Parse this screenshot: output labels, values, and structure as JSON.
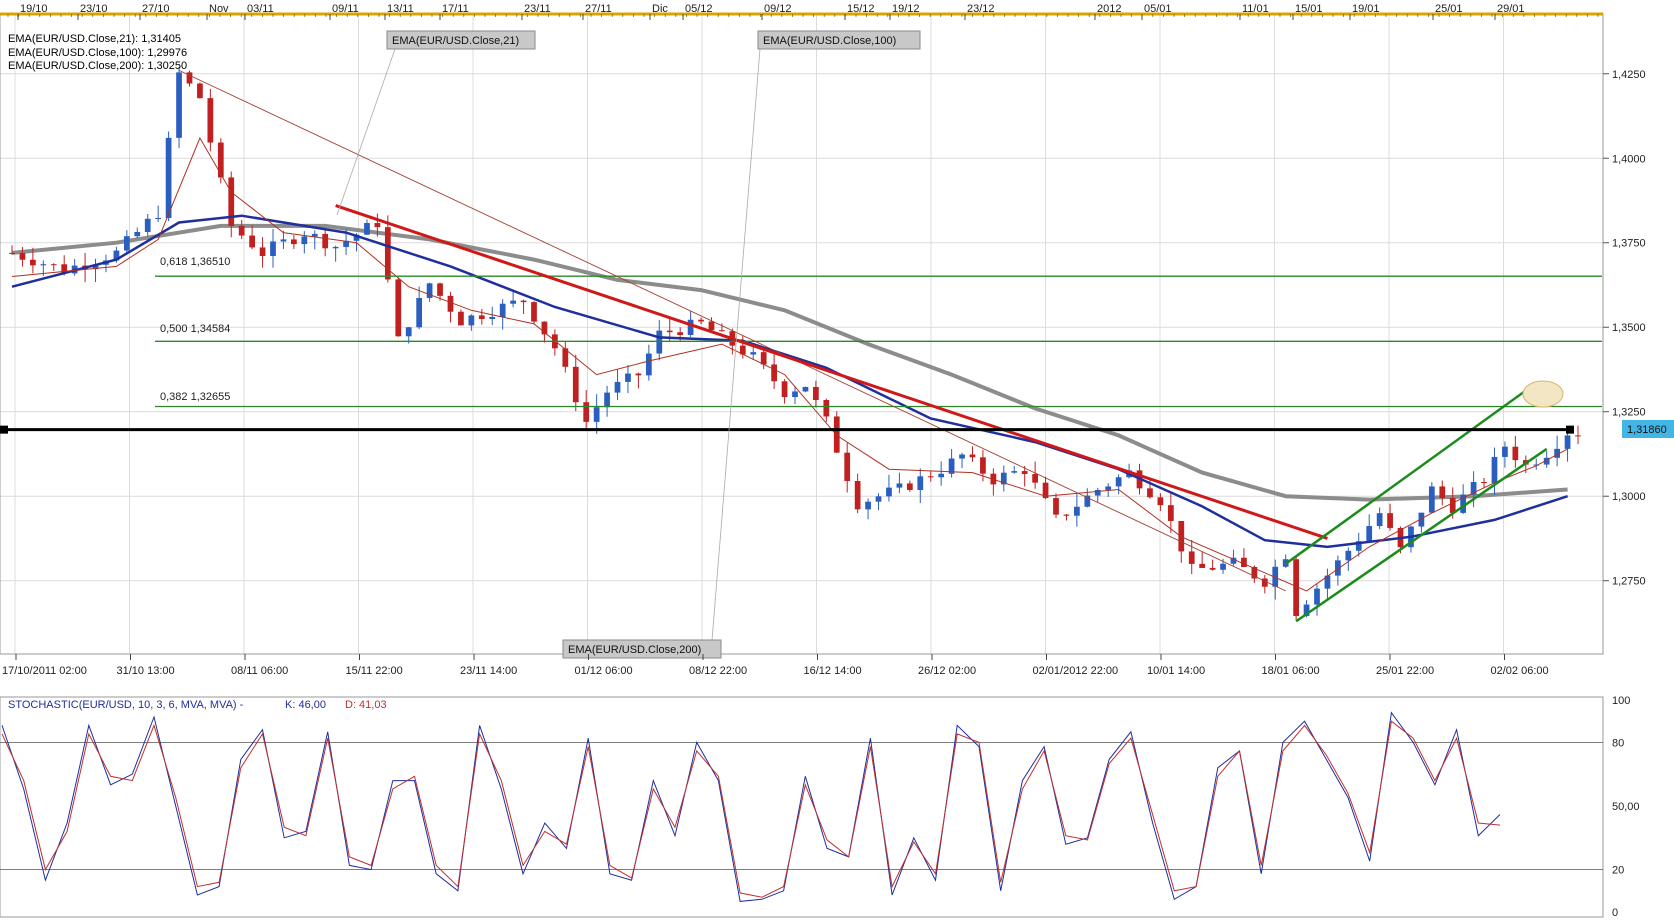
{
  "colors": {
    "ema21": "#b03020",
    "ema100": "#1f2f9e",
    "ema200": "#8c8c8c",
    "up": "#2a5fc0",
    "down": "#c02020",
    "trend_red": "#d01818",
    "channel": "#1a8c1a",
    "fib": "#2a8a2a",
    "support": "#000000",
    "price_tag": "#41b6e6",
    "stoch_k": "#1f2f9e",
    "stoch_d": "#c03030",
    "grid": "#dcdcdc"
  },
  "top_axis": {
    "labels": [
      "19/10",
      "23/10",
      "27/10",
      "Nov",
      "03/11",
      "09/11",
      "13/11",
      "17/11",
      "23/11",
      "27/11",
      "Dic",
      "05/12",
      "09/12",
      "15/12",
      "19/12",
      "23/12",
      "2012",
      "05/01",
      "11/01",
      "15/01",
      "19/01",
      "25/01",
      "29/01"
    ]
  },
  "bottom_axis": {
    "labels": [
      "17/10/2011 02:00",
      "31/10 13:00",
      "08/11 06:00",
      "15/11 22:00",
      "23/11 14:00",
      "01/12 06:00",
      "08/12 22:00",
      "16/12 14:00",
      "26/12 02:00",
      "02/01/2012 22:00",
      "10/01 14:00",
      "18/01 06:00",
      "25/01 22:00",
      "02/02 06:00"
    ]
  },
  "legend": [
    {
      "text": "EMA(EUR/USD.Close,21): 1,31405",
      "color_key": "ema21"
    },
    {
      "text": "EMA(EUR/USD.Close,100): 1,29976",
      "color_key": "ema100"
    },
    {
      "text": "EMA(EUR/USD.Close,200): 1,30250",
      "color_key": "ema200"
    }
  ],
  "indicator_labels": [
    "EMA(EUR/USD.Close,21)",
    "EMA(EUR/USD.Close,100)",
    "EMA(EUR/USD.Close,200)"
  ],
  "fib_labels": [
    "0,618 1,36510",
    "0,500 1,34584",
    "0,382 1,32655"
  ],
  "price_tag": "1,31860",
  "stochastic": {
    "title": "STOCHASTIC(EUR/USD, 10, 3, 6, MVA, MVA) -",
    "k_text": "K: 46,00",
    "d_text": "D: 41,03",
    "ticks": [
      "100",
      "80",
      "50,00",
      "20",
      "0"
    ]
  },
  "chart_data": [
    {
      "type": "candlestick",
      "title": "",
      "y_ticks": [
        "1,4250",
        "1,4000",
        "1,3750",
        "1,3500",
        "1,3250",
        "1,3000",
        "1,2750"
      ],
      "ylim": [
        1.2545,
        1.4415
      ],
      "x_range_index": [
        0,
        150
      ],
      "grid": true,
      "anchors_close": [
        [
          0,
          1.372
        ],
        [
          5,
          1.367
        ],
        [
          10,
          1.372
        ],
        [
          14,
          1.384
        ],
        [
          16,
          1.425
        ],
        [
          18,
          1.418
        ],
        [
          19,
          1.405
        ],
        [
          21,
          1.38
        ],
        [
          24,
          1.372
        ],
        [
          28,
          1.378
        ],
        [
          31,
          1.374
        ],
        [
          35,
          1.381
        ],
        [
          37,
          1.346
        ],
        [
          40,
          1.363
        ],
        [
          43,
          1.352
        ],
        [
          46,
          1.355
        ],
        [
          49,
          1.358
        ],
        [
          52,
          1.344
        ],
        [
          55,
          1.322
        ],
        [
          57,
          1.331
        ],
        [
          60,
          1.336
        ],
        [
          62,
          1.348
        ],
        [
          66,
          1.351
        ],
        [
          71,
          1.341
        ],
        [
          74,
          1.331
        ],
        [
          76,
          1.333
        ],
        [
          78,
          1.322
        ],
        [
          81,
          1.298
        ],
        [
          85,
          1.302
        ],
        [
          89,
          1.308
        ],
        [
          91,
          1.312
        ],
        [
          94,
          1.305
        ],
        [
          97,
          1.308
        ],
        [
          100,
          1.293
        ],
        [
          104,
          1.302
        ],
        [
          107,
          1.307
        ],
        [
          110,
          1.299
        ],
        [
          113,
          1.278
        ],
        [
          117,
          1.28
        ],
        [
          120,
          1.275
        ],
        [
          122,
          1.283
        ],
        [
          123,
          1.266
        ],
        [
          125,
          1.273
        ],
        [
          128,
          1.284
        ],
        [
          131,
          1.295
        ],
        [
          133,
          1.284
        ],
        [
          136,
          1.302
        ],
        [
          138,
          1.297
        ],
        [
          141,
          1.305
        ],
        [
          143,
          1.315
        ],
        [
          145,
          1.309
        ],
        [
          147,
          1.313
        ],
        [
          149,
          1.319
        ]
      ],
      "ema21": [
        [
          0,
          1.365
        ],
        [
          10,
          1.368
        ],
        [
          14,
          1.376
        ],
        [
          18,
          1.406
        ],
        [
          21,
          1.39
        ],
        [
          26,
          1.378
        ],
        [
          33,
          1.375
        ],
        [
          38,
          1.362
        ],
        [
          44,
          1.355
        ],
        [
          50,
          1.351
        ],
        [
          56,
          1.336
        ],
        [
          61,
          1.34
        ],
        [
          68,
          1.345
        ],
        [
          74,
          1.336
        ],
        [
          79,
          1.318
        ],
        [
          84,
          1.308
        ],
        [
          92,
          1.307
        ],
        [
          99,
          1.3
        ],
        [
          106,
          1.302
        ],
        [
          112,
          1.288
        ],
        [
          118,
          1.28
        ],
        [
          124,
          1.272
        ],
        [
          130,
          1.285
        ],
        [
          136,
          1.295
        ],
        [
          142,
          1.304
        ],
        [
          146,
          1.309
        ],
        [
          149,
          1.314
        ]
      ],
      "ema100": [
        [
          0,
          1.362
        ],
        [
          10,
          1.37
        ],
        [
          16,
          1.381
        ],
        [
          22,
          1.383
        ],
        [
          32,
          1.378
        ],
        [
          42,
          1.368
        ],
        [
          52,
          1.356
        ],
        [
          62,
          1.347
        ],
        [
          70,
          1.346
        ],
        [
          78,
          1.338
        ],
        [
          88,
          1.323
        ],
        [
          98,
          1.316
        ],
        [
          106,
          1.308
        ],
        [
          114,
          1.297
        ],
        [
          120,
          1.287
        ],
        [
          126,
          1.285
        ],
        [
          134,
          1.288
        ],
        [
          142,
          1.293
        ],
        [
          149,
          1.3
        ]
      ],
      "ema200": [
        [
          0,
          1.372
        ],
        [
          10,
          1.375
        ],
        [
          20,
          1.38
        ],
        [
          30,
          1.38
        ],
        [
          40,
          1.376
        ],
        [
          50,
          1.37
        ],
        [
          58,
          1.364
        ],
        [
          66,
          1.361
        ],
        [
          74,
          1.355
        ],
        [
          82,
          1.345
        ],
        [
          90,
          1.336
        ],
        [
          98,
          1.326
        ],
        [
          106,
          1.318
        ],
        [
          114,
          1.307
        ],
        [
          122,
          1.3
        ],
        [
          130,
          1.299
        ],
        [
          140,
          1.3
        ],
        [
          149,
          1.302
        ]
      ],
      "lines": {
        "fib_levels": [
          1.3651,
          1.34584,
          1.32655
        ],
        "support": 1.3197,
        "red_trend": [
          [
            31,
            1.386
          ],
          [
            126,
            1.2875
          ]
        ],
        "thin_trend": [
          [
            16,
            1.426
          ],
          [
            122,
            1.272
          ]
        ],
        "channel_upper": [
          [
            122,
            1.28
          ],
          [
            146,
            1.3335
          ]
        ],
        "channel_lower": [
          [
            123,
            1.263
          ],
          [
            147,
            1.314
          ]
        ]
      },
      "last_price": 1.3186
    },
    {
      "type": "line",
      "title": "STOCHASTIC(EUR/USD, 10, 3, 6, MVA, MVA)",
      "ylim": [
        0,
        100
      ],
      "y_ticks": [
        100,
        80,
        50,
        20,
        0
      ],
      "series": [
        {
          "name": "K",
          "values": [
            88,
            58,
            15,
            42,
            88,
            60,
            65,
            92,
            50,
            8,
            12,
            72,
            86,
            35,
            38,
            85,
            22,
            20,
            62,
            62,
            18,
            10,
            88,
            58,
            18,
            42,
            30,
            82,
            18,
            15,
            62,
            36,
            80,
            62,
            5,
            6,
            10,
            64,
            30,
            26,
            82,
            8,
            35,
            15,
            88,
            78,
            10,
            62,
            78,
            32,
            35,
            72,
            85,
            42,
            6,
            12,
            68,
            76,
            18,
            80,
            90,
            72,
            54,
            24,
            94,
            80,
            60,
            86,
            36,
            46
          ]
        },
        {
          "name": "D",
          "values": [
            84,
            62,
            20,
            38,
            84,
            64,
            62,
            88,
            54,
            12,
            14,
            68,
            84,
            40,
            36,
            82,
            26,
            22,
            58,
            64,
            22,
            12,
            84,
            62,
            22,
            38,
            32,
            78,
            22,
            16,
            58,
            40,
            76,
            64,
            9,
            7,
            12,
            60,
            34,
            26,
            78,
            12,
            33,
            18,
            84,
            80,
            14,
            58,
            76,
            36,
            34,
            70,
            82,
            46,
            10,
            12,
            64,
            76,
            22,
            76,
            88,
            74,
            56,
            28,
            90,
            82,
            62,
            82,
            42,
            41
          ]
        }
      ]
    }
  ]
}
